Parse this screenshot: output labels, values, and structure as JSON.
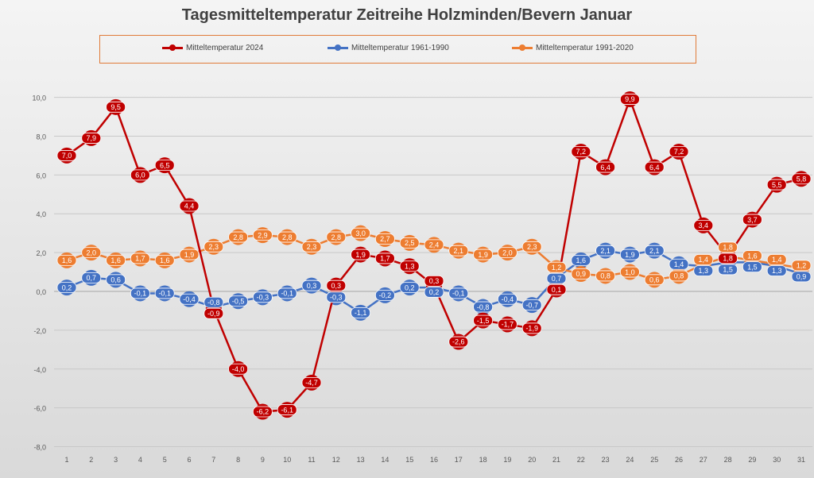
{
  "chart_data": {
    "type": "line",
    "title": "Tagesmitteltemperatur Zeitreihe Holzminden/Bevern Januar",
    "xlabel": "",
    "ylabel": "",
    "x": [
      1,
      2,
      3,
      4,
      5,
      6,
      7,
      8,
      9,
      10,
      11,
      12,
      13,
      14,
      15,
      16,
      17,
      18,
      19,
      20,
      21,
      22,
      23,
      24,
      25,
      26,
      27,
      28,
      29,
      30,
      31
    ],
    "ylim": [
      -8,
      10
    ],
    "yticks": [
      "10,0",
      "8,0",
      "6,0",
      "4,0",
      "2,0",
      "0,0",
      "-2,0",
      "-4,0",
      "-6,0",
      "-8,0"
    ],
    "grid": true,
    "legend": "top",
    "series": [
      {
        "name": "Mitteltemperatur 2024",
        "color": "#c00000",
        "values": [
          7.0,
          7.9,
          9.5,
          6.0,
          6.5,
          4.4,
          -0.9,
          -4.0,
          -6.2,
          -6.1,
          -4.7,
          0.3,
          1.9,
          1.7,
          1.3,
          0.3,
          -2.6,
          -1.5,
          -1.7,
          -1.9,
          0.1,
          7.2,
          6.4,
          9.9,
          6.4,
          7.2,
          3.4,
          1.8,
          3.7,
          5.5,
          5.8
        ]
      },
      {
        "name": "Mitteltemperatur 1961-1990",
        "color": "#4472c4",
        "values": [
          0.2,
          0.7,
          0.6,
          -0.1,
          -0.1,
          -0.4,
          -0.8,
          -0.5,
          -0.3,
          -0.1,
          0.3,
          -0.3,
          -1.1,
          -0.2,
          0.2,
          0.2,
          -0.1,
          -0.8,
          -0.4,
          -0.7,
          0.7,
          1.6,
          2.1,
          1.9,
          2.1,
          1.4,
          1.3,
          1.5,
          1.5,
          1.3,
          0.9
        ]
      },
      {
        "name": "Mitteltemperatur 1991-2020",
        "color": "#ed7d31",
        "values": [
          1.6,
          2.0,
          1.6,
          1.7,
          1.6,
          1.9,
          2.3,
          2.8,
          2.9,
          2.8,
          2.3,
          2.8,
          3.0,
          2.7,
          2.5,
          2.4,
          2.1,
          1.9,
          2.0,
          2.3,
          1.2,
          0.9,
          0.8,
          1.0,
          0.6,
          0.8,
          1.4,
          1.8,
          1.6,
          1.4,
          1.2
        ]
      }
    ]
  }
}
